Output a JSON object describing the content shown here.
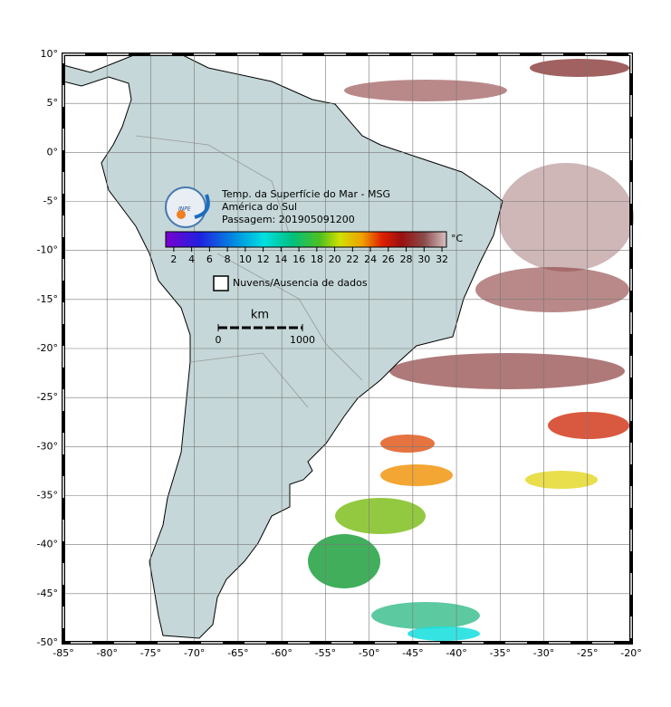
{
  "map": {
    "xlim": [
      -85,
      -20
    ],
    "ylim": [
      -50,
      10
    ],
    "xticks": [
      {
        "value": -85,
        "label": "-85°"
      },
      {
        "value": -80,
        "label": "-80°"
      },
      {
        "value": -75,
        "label": "-75°"
      },
      {
        "value": -70,
        "label": "-70°"
      },
      {
        "value": -65,
        "label": "-65°"
      },
      {
        "value": -60,
        "label": "-60°"
      },
      {
        "value": -55,
        "label": "-55°"
      },
      {
        "value": -50,
        "label": "-50°"
      },
      {
        "value": -45,
        "label": "-45°"
      },
      {
        "value": -40,
        "label": "-40°"
      },
      {
        "value": -35,
        "label": "-35°"
      },
      {
        "value": -30,
        "label": "-30°"
      },
      {
        "value": -25,
        "label": "-25°"
      },
      {
        "value": -20,
        "label": "-20°"
      }
    ],
    "yticks": [
      {
        "value": 10,
        "label": "10°"
      },
      {
        "value": 5,
        "label": "5°"
      },
      {
        "value": 0,
        "label": "0°"
      },
      {
        "value": -5,
        "label": "-5°"
      },
      {
        "value": -10,
        "label": "-10°"
      },
      {
        "value": -15,
        "label": "-15°"
      },
      {
        "value": -20,
        "label": "-20°"
      },
      {
        "value": -25,
        "label": "-25°"
      },
      {
        "value": -30,
        "label": "-30°"
      },
      {
        "value": -35,
        "label": "-35°"
      },
      {
        "value": -40,
        "label": "-40°"
      },
      {
        "value": -45,
        "label": "-45°"
      },
      {
        "value": -50,
        "label": "-50°"
      }
    ],
    "grid": true
  },
  "legend": {
    "logo": "INPE",
    "title_lines": [
      "Temp. da Superfície do Mar - MSG",
      "América do Sul",
      "Passagem: 201905091200"
    ],
    "colorbar": {
      "range": [
        1.1,
        32.5
      ],
      "ticks": [
        2,
        4,
        6,
        8,
        10,
        12,
        14,
        16,
        18,
        20,
        22,
        24,
        26,
        28,
        30,
        32
      ],
      "unit": "°C"
    },
    "no_data": "Nuvens/Ausencia de dados"
  },
  "scale": {
    "unit": "km",
    "range": [
      0,
      1000
    ],
    "ticks": [
      0,
      1000
    ]
  }
}
